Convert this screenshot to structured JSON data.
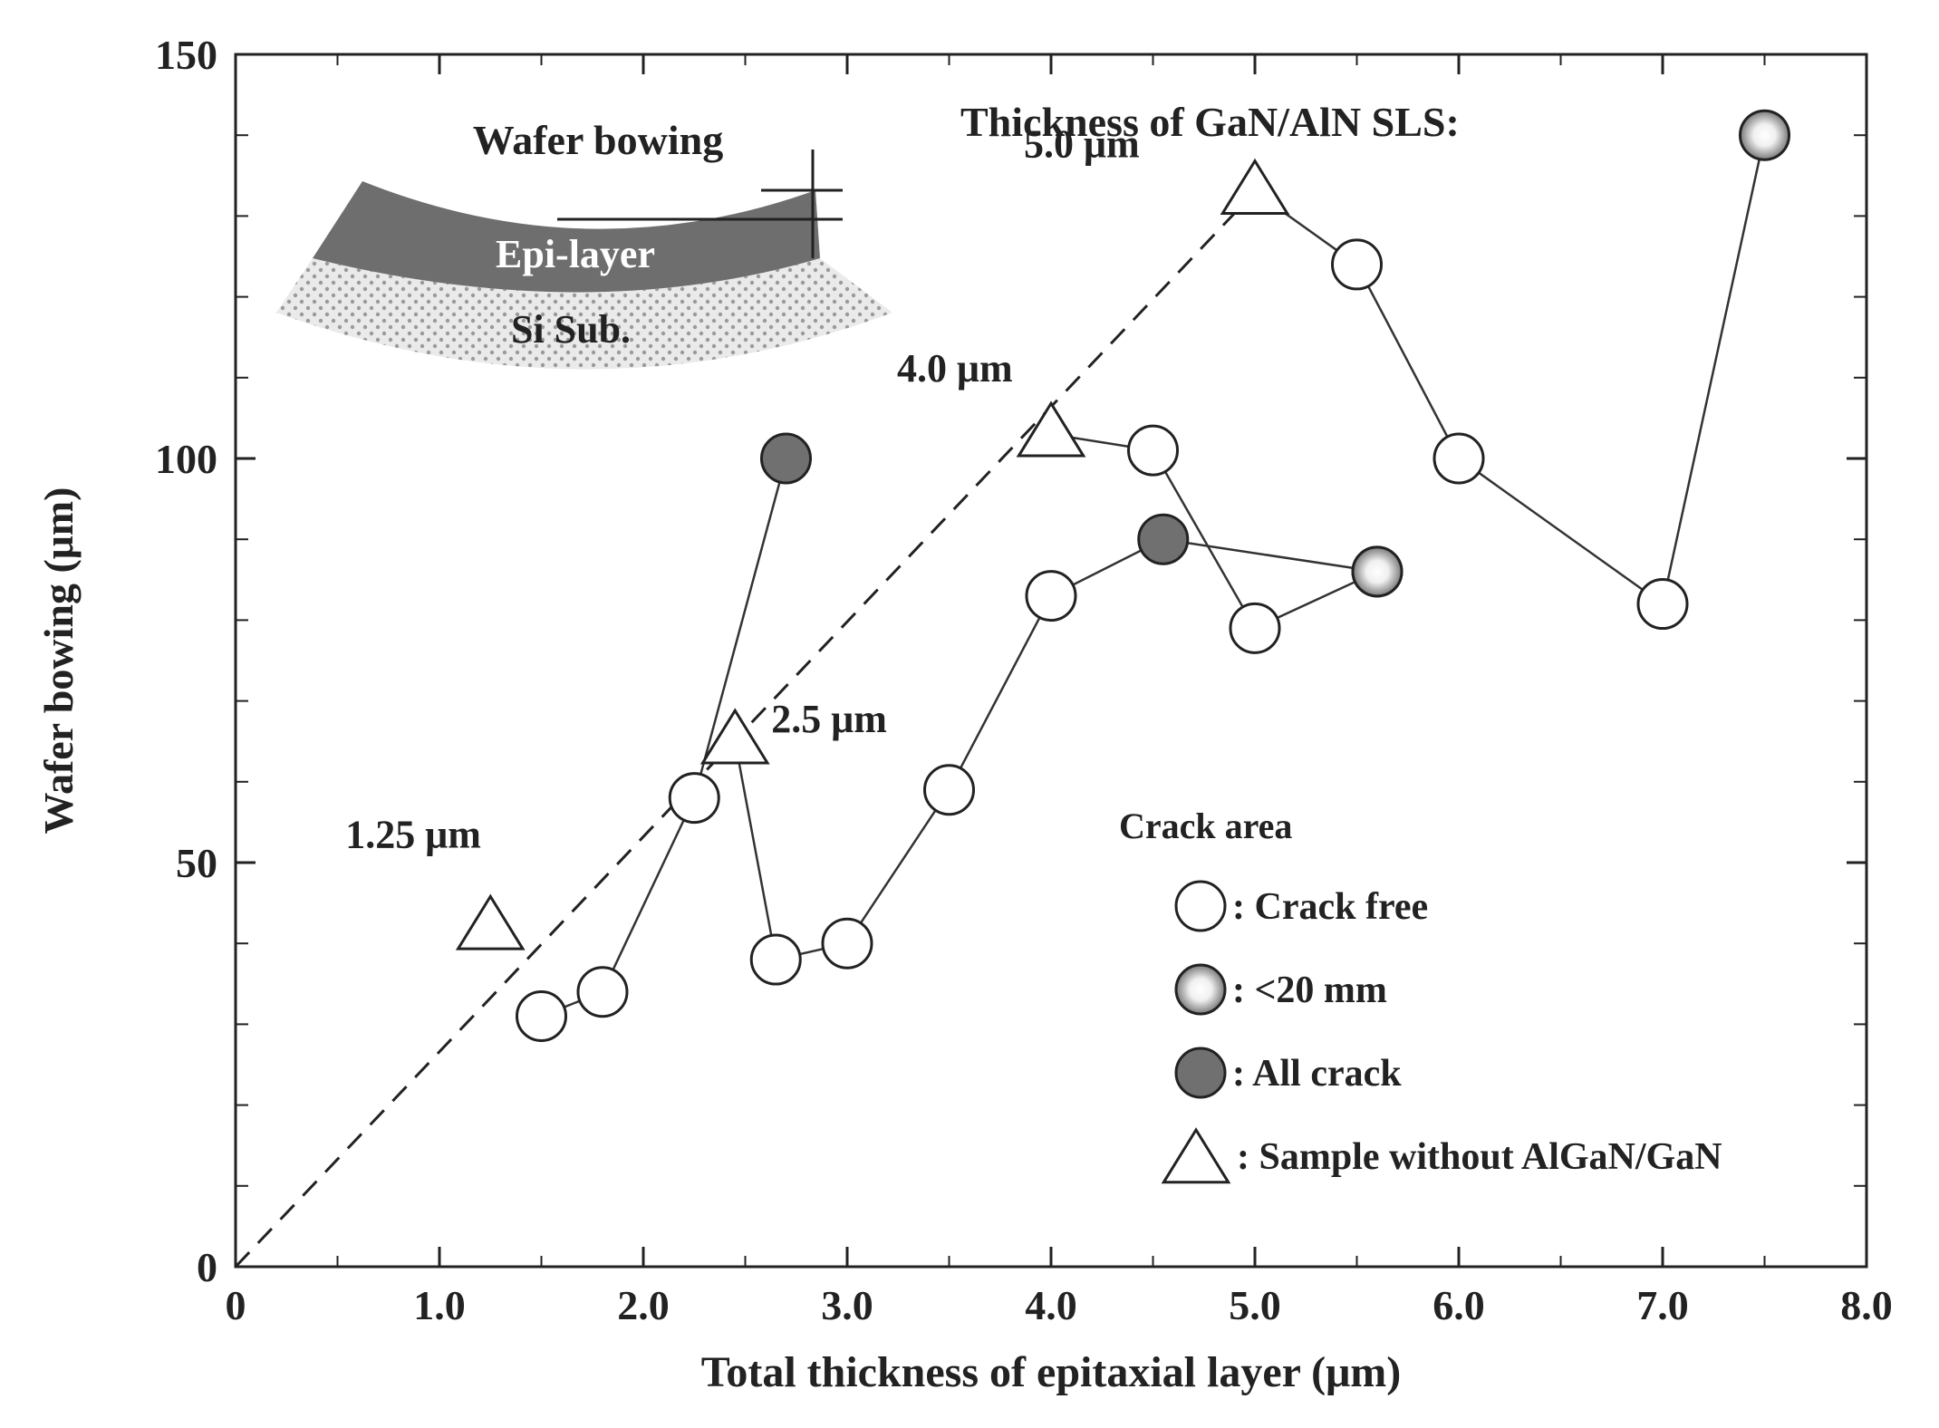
{
  "chart_data": {
    "type": "scatter",
    "xlabel": "Total thickness of epitaxial layer (μm)",
    "ylabel": "Wafer bowing (μm)",
    "xlim": [
      0,
      8
    ],
    "ylim": [
      0,
      150
    ],
    "x_ticks": [
      "0",
      "1.0",
      "2.0",
      "3.0",
      "4.0",
      "5.0",
      "6.0",
      "7.0",
      "8.0"
    ],
    "x_tick_values": [
      0,
      1,
      2,
      3,
      4,
      5,
      6,
      7,
      8
    ],
    "y_ticks": [
      "0",
      "50",
      "100",
      "150"
    ],
    "y_tick_values": [
      0,
      50,
      100,
      150
    ],
    "y_minor_tick_values": [
      10,
      20,
      30,
      40,
      60,
      70,
      80,
      90,
      110,
      120,
      130,
      140
    ],
    "series": [
      {
        "marker": "circle",
        "points": [
          {
            "x": 1.5,
            "y": 31,
            "crack": "free"
          },
          {
            "x": 1.8,
            "y": 34,
            "crack": "free"
          },
          {
            "x": 2.25,
            "y": 58,
            "crack": "free"
          },
          {
            "x": 2.7,
            "y": 100,
            "crack": "all"
          }
        ]
      },
      {
        "marker": "circle",
        "points": [
          {
            "x": 2.45,
            "y": 65,
            "crack": "none",
            "marker": "triangle"
          },
          {
            "x": 2.65,
            "y": 38,
            "crack": "free"
          },
          {
            "x": 3.0,
            "y": 40,
            "crack": "free"
          },
          {
            "x": 3.5,
            "y": 59,
            "crack": "free"
          },
          {
            "x": 4.0,
            "y": 83,
            "crack": "free"
          },
          {
            "x": 4.55,
            "y": 90,
            "crack": "all"
          },
          {
            "x": 5.6,
            "y": 86,
            "crack": "partial"
          }
        ]
      },
      {
        "marker": "circle",
        "points": [
          {
            "x": 4.0,
            "y": 103,
            "crack": "none",
            "marker": "triangle"
          },
          {
            "x": 4.5,
            "y": 101,
            "crack": "free"
          },
          {
            "x": 5.0,
            "y": 79,
            "crack": "free"
          },
          {
            "x": 5.6,
            "y": 86,
            "crack": "partial"
          }
        ]
      },
      {
        "marker": "circle",
        "points": [
          {
            "x": 5.0,
            "y": 133,
            "crack": "none",
            "marker": "triangle"
          },
          {
            "x": 5.5,
            "y": 124,
            "crack": "free"
          },
          {
            "x": 6.0,
            "y": 100,
            "crack": "free"
          },
          {
            "x": 7.0,
            "y": 82,
            "crack": "free"
          },
          {
            "x": 7.5,
            "y": 140,
            "crack": "partial"
          }
        ]
      }
    ],
    "reference_line": {
      "style": "dashed",
      "points": [
        [
          0,
          0
        ],
        [
          5.0,
          133
        ]
      ]
    },
    "triangles": [
      {
        "x": 1.25,
        "y": 42,
        "label": "1.25 μm"
      },
      {
        "x": 2.45,
        "y": 65,
        "label": "2.5 μm"
      },
      {
        "x": 4.0,
        "y": 103,
        "label": "4.0 μm"
      },
      {
        "x": 5.0,
        "y": 133,
        "label": "5.0 μm"
      }
    ],
    "annotation_title": "Thickness of GaN/AlN SLS:",
    "legend": {
      "title": "Crack area",
      "placement": "bottom-right",
      "items": [
        {
          "symbol": "circle-open",
          "label": ": Crack free"
        },
        {
          "symbol": "circle-partial",
          "label": ":  <20 mm"
        },
        {
          "symbol": "circle-filled",
          "label": ": All crack"
        },
        {
          "symbol": "triangle",
          "label": ": Sample without AlGaN/GaN"
        }
      ]
    },
    "inset": {
      "title": "Wafer bowing",
      "epi_label": "Epi-layer",
      "sub_label": "Si Sub."
    },
    "colors": {
      "axis": "#222222",
      "filled_marker": "#707070",
      "epi_layer": "#6e6e6e",
      "substrate_dots": "#9a9a9a"
    }
  }
}
